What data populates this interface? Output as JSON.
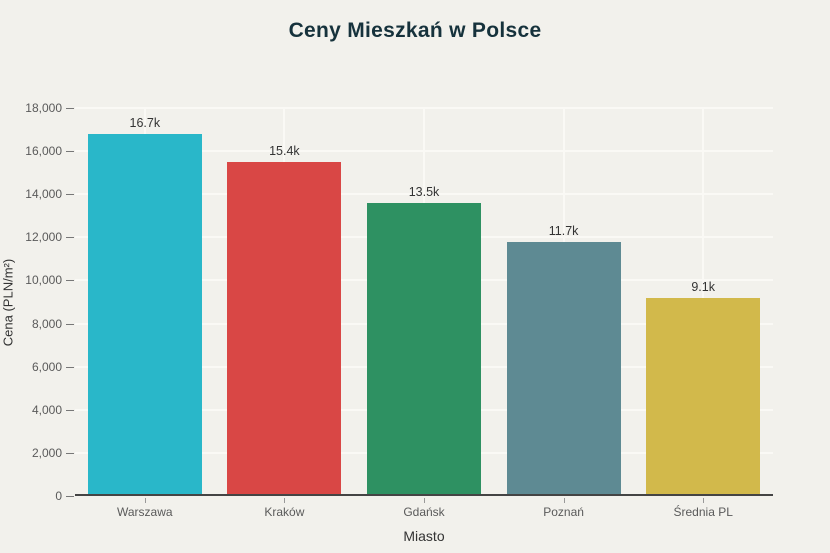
{
  "page": {
    "background_color": "#f2f1ec",
    "title_color": "#16323c",
    "gridline_color": "#faf9f5",
    "axis_line_color": "#444444",
    "tick_label_color": "#5a5a5a",
    "value_label_color": "#333333"
  },
  "chart_data": {
    "type": "bar",
    "title": "Ceny Mieszkań w Polsce",
    "xlabel": "Miasto",
    "ylabel": "Cena (PLN/m²)",
    "categories": [
      "Warszawa",
      "Kraków",
      "Gdańsk",
      "Poznań",
      "Średnia PL"
    ],
    "values": [
      16700,
      15400,
      13500,
      11700,
      9100
    ],
    "bar_labels": [
      "16.7k",
      "15.4k",
      "13.5k",
      "11.7k",
      "9.1k"
    ],
    "bar_colors": [
      "#29b7c9",
      "#d94745",
      "#2e9162",
      "#5e8a93",
      "#d2b94b"
    ],
    "ylim": [
      0,
      18000
    ],
    "ytick_step": 2000,
    "ytick_labels": [
      "0",
      "2,000",
      "4,000",
      "6,000",
      "8,000",
      "10,000",
      "12,000",
      "14,000",
      "16,000",
      "18,000"
    ],
    "grid": true,
    "legend": false
  }
}
